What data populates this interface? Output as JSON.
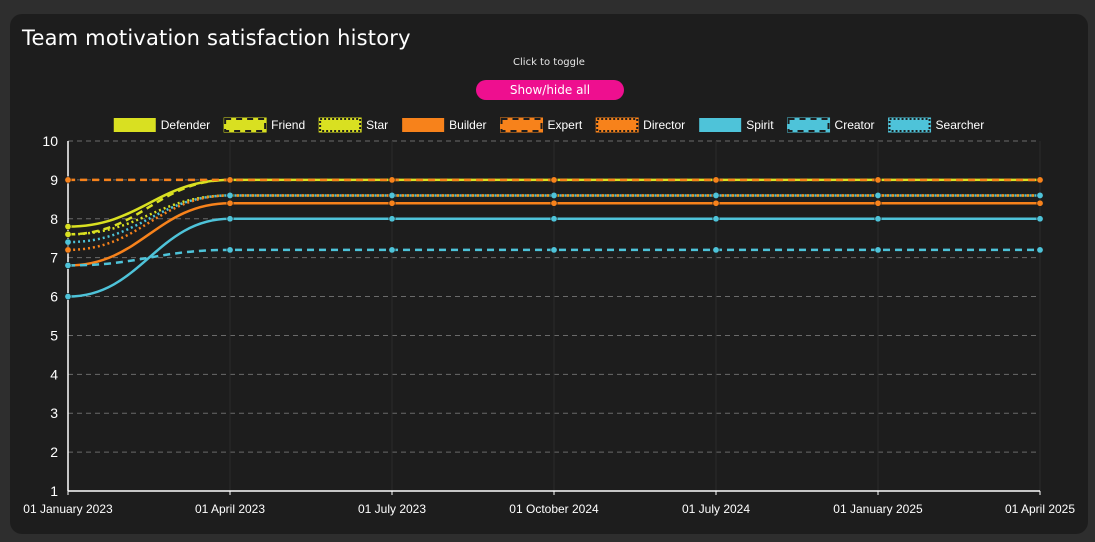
{
  "title": "Team motivation satisfaction history",
  "hint": "Click to toggle",
  "toggle_label": "Show/hide all",
  "chart_data": {
    "type": "line",
    "title": "Team motivation satisfaction history",
    "xlabel": "",
    "ylabel": "",
    "ylim": [
      1,
      10
    ],
    "yticks": [
      "1",
      "2",
      "3",
      "4",
      "5",
      "6",
      "7",
      "8",
      "9",
      "10"
    ],
    "categories": [
      "01 January 2023",
      "01 April 2023",
      "01 July 2023",
      "01 October 2024",
      "01 July 2024",
      "01 January 2025",
      "01 April 2025"
    ],
    "grid": true,
    "legend": "top",
    "series": [
      {
        "name": "Defender",
        "color": "#d9e021",
        "dash": "solid",
        "values": [
          7.8,
          9.0,
          9.0,
          9.0,
          9.0,
          9.0,
          9.0
        ]
      },
      {
        "name": "Friend",
        "color": "#d9e021",
        "dash": "dashed",
        "values": [
          7.6,
          9.0,
          9.0,
          9.0,
          9.0,
          9.0,
          9.0
        ]
      },
      {
        "name": "Star",
        "color": "#d9e021",
        "dash": "dotted",
        "values": [
          7.6,
          8.6,
          8.6,
          8.6,
          8.6,
          8.6,
          8.6
        ]
      },
      {
        "name": "Builder",
        "color": "#f7821b",
        "dash": "solid",
        "values": [
          6.8,
          8.4,
          8.4,
          8.4,
          8.4,
          8.4,
          8.4
        ]
      },
      {
        "name": "Expert",
        "color": "#f7821b",
        "dash": "dashed",
        "values": [
          9.0,
          9.0,
          9.0,
          9.0,
          9.0,
          9.0,
          9.0
        ]
      },
      {
        "name": "Director",
        "color": "#f7821b",
        "dash": "dotted",
        "values": [
          7.2,
          8.6,
          8.6,
          8.6,
          8.6,
          8.6,
          8.6
        ]
      },
      {
        "name": "Spirit",
        "color": "#4ec3d9",
        "dash": "solid",
        "values": [
          6.0,
          8.0,
          8.0,
          8.0,
          8.0,
          8.0,
          8.0
        ]
      },
      {
        "name": "Creator",
        "color": "#4ec3d9",
        "dash": "dashed",
        "values": [
          6.8,
          7.2,
          7.2,
          7.2,
          7.2,
          7.2,
          7.2
        ]
      },
      {
        "name": "Searcher",
        "color": "#4ec3d9",
        "dash": "dotted",
        "values": [
          7.4,
          8.6,
          8.6,
          8.6,
          8.6,
          8.6,
          8.6
        ]
      }
    ]
  }
}
